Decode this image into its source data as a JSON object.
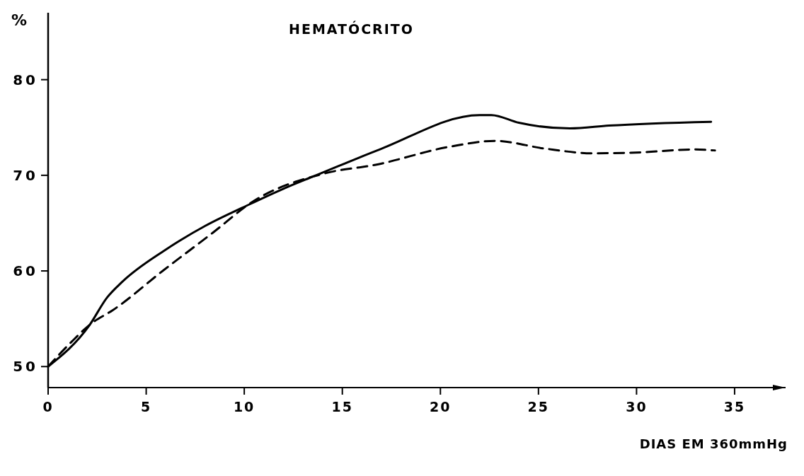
{
  "chart_data": {
    "type": "line",
    "title": "HEMATÓCRITO",
    "xlabel": "DIAS EM 360mmHg",
    "ylabel": "%",
    "xlim": [
      0,
      37.6
    ],
    "xticks": [
      0,
      5,
      10,
      15,
      20,
      25,
      30,
      35
    ],
    "ylim": [
      47.8,
      87
    ],
    "yticks": [
      50,
      60,
      70,
      80
    ],
    "grid": false,
    "series": [
      {
        "color": "#000000",
        "line_style": "solid",
        "x": [
          0,
          2.1,
          3.0,
          3.8,
          5.9,
          8.0,
          10.2,
          12.0,
          13.9,
          16.9,
          22.0,
          22.6,
          24.0,
          26.6,
          28.6,
          33.8
        ],
        "values": [
          50,
          54.3,
          57.2,
          58.9,
          62.1,
          64.7,
          66.9,
          68.6,
          70.2,
          72.7,
          76.3,
          76.3,
          75.5,
          74.9,
          75.2,
          75.6
        ]
      },
      {
        "color": "#000000",
        "line_style": "dashed",
        "x": [
          0,
          1.2,
          2.2,
          3.3,
          5.9,
          8.4,
          10.4,
          14.1,
          16.7,
          20.5,
          22.8,
          25.3,
          27.8,
          30.2,
          32.9,
          34.0
        ],
        "values": [
          50,
          52.6,
          54.5,
          55.9,
          60.1,
          64.0,
          67.2,
          70.2,
          71.1,
          73.0,
          73.6,
          72.8,
          72.3,
          72.4,
          72.7,
          72.6
        ]
      }
    ]
  }
}
